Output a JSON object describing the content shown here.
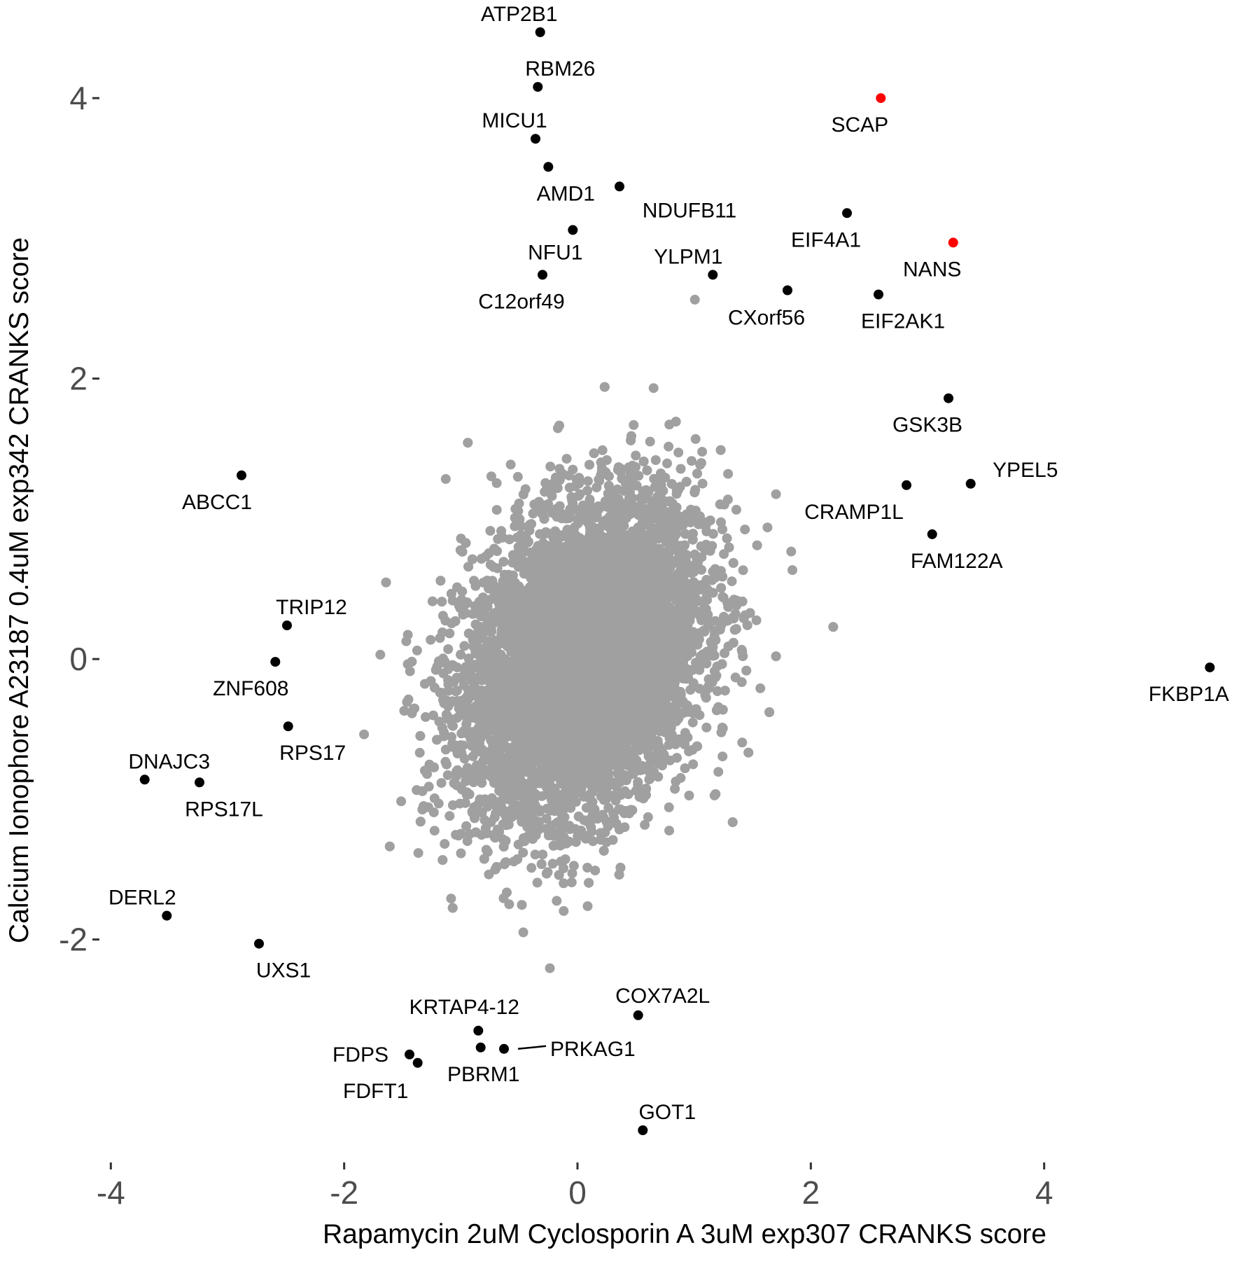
{
  "chart_data": {
    "type": "scatter",
    "title": "",
    "xlabel": "Rapamycin 2uM Cyclosporin A 3uM exp307 CRANKS score",
    "ylabel": "Calcium Ionophore A23187 0.4uM exp342 CRANKS score",
    "xlim": [
      -4.05,
      5.55
    ],
    "ylim": [
      -3.55,
      4.55
    ],
    "x_ticks": [
      -4,
      -2,
      0,
      2,
      4
    ],
    "y_ticks": [
      -2,
      0,
      2,
      4
    ],
    "x_tick_labels": [
      "-4",
      "-2",
      "0",
      "2",
      "4"
    ],
    "y_tick_labels": [
      "-2",
      "0",
      "2",
      "4"
    ],
    "grid": false,
    "legend": "none",
    "colors": {
      "background": "#ffffff",
      "cloud": "#a0a0a0",
      "highlight": "#000000",
      "special": "#ff0000",
      "tick_text": "#4d4d4d"
    },
    "background_cloud": {
      "description_counts": "approx. bivariate normal cloud of non-highlighted genes",
      "n": 9000,
      "x_mean": 0.05,
      "y_mean": 0.0,
      "x_sd": 0.5,
      "y_sd": 0.55,
      "correlation": 0.3,
      "color": "#a0a0a0"
    },
    "highlighted_points": [
      {
        "label": "ATP2B1",
        "x": -0.32,
        "y": 4.47,
        "color": "#000000"
      },
      {
        "label": "RBM26",
        "x": -0.34,
        "y": 4.08,
        "color": "#000000"
      },
      {
        "label": "MICU1",
        "x": -0.36,
        "y": 3.71,
        "color": "#000000"
      },
      {
        "label": "AMD1",
        "x": -0.25,
        "y": 3.51,
        "color": "#000000"
      },
      {
        "label": "NDUFB11",
        "x": 0.36,
        "y": 3.37,
        "color": "#000000"
      },
      {
        "label": "NFU1",
        "x": -0.04,
        "y": 3.06,
        "color": "#000000"
      },
      {
        "label": "C12orf49",
        "x": -0.3,
        "y": 2.74,
        "color": "#000000"
      },
      {
        "label": "YLPM1",
        "x": 1.16,
        "y": 2.74,
        "color": "#000000"
      },
      {
        "label": "CXorf56",
        "x": 1.8,
        "y": 2.63,
        "color": "#000000"
      },
      {
        "label": "SCAP",
        "x": 2.6,
        "y": 4.0,
        "color": "#ff0000"
      },
      {
        "label": "EIF4A1",
        "x": 2.31,
        "y": 3.18,
        "color": "#000000"
      },
      {
        "label": "NANS",
        "x": 3.22,
        "y": 2.97,
        "color": "#ff0000"
      },
      {
        "label": "EIF2AK1",
        "x": 2.58,
        "y": 2.6,
        "color": "#000000"
      },
      {
        "label": "GSK3B",
        "x": 3.18,
        "y": 1.86,
        "color": "#000000"
      },
      {
        "label": "YPEL5",
        "x": 3.37,
        "y": 1.25,
        "color": "#000000"
      },
      {
        "label": "CRAMP1L",
        "x": 2.82,
        "y": 1.24,
        "color": "#000000"
      },
      {
        "label": "FAM122A",
        "x": 3.04,
        "y": 0.89,
        "color": "#000000"
      },
      {
        "label": "FKBP1A",
        "x": 5.42,
        "y": -0.06,
        "color": "#000000"
      },
      {
        "label": "ABCC1",
        "x": -2.88,
        "y": 1.31,
        "color": "#000000"
      },
      {
        "label": "TRIP12",
        "x": -2.49,
        "y": 0.24,
        "color": "#000000"
      },
      {
        "label": "ZNF608",
        "x": -2.59,
        "y": -0.02,
        "color": "#000000"
      },
      {
        "label": "RPS17",
        "x": -2.48,
        "y": -0.48,
        "color": "#000000"
      },
      {
        "label": "DNAJC3",
        "x": -3.71,
        "y": -0.86,
        "color": "#000000"
      },
      {
        "label": "RPS17L",
        "x": -3.24,
        "y": -0.88,
        "color": "#000000"
      },
      {
        "label": "DERL2",
        "x": -3.52,
        "y": -1.83,
        "color": "#000000"
      },
      {
        "label": "UXS1",
        "x": -2.73,
        "y": -2.03,
        "color": "#000000"
      },
      {
        "label": "KRTAP4-12",
        "x": -0.85,
        "y": -2.65,
        "color": "#000000"
      },
      {
        "label": "COX7A2L",
        "x": 0.52,
        "y": -2.54,
        "color": "#000000"
      },
      {
        "label": "FDPS",
        "x": -1.44,
        "y": -2.82,
        "color": "#000000"
      },
      {
        "label": "FDFT1",
        "x": -1.37,
        "y": -2.88,
        "color": "#000000"
      },
      {
        "label": "PBRM1",
        "x": -0.83,
        "y": -2.77,
        "color": "#000000"
      },
      {
        "label": "PRKAG1",
        "x": -0.63,
        "y": -2.78,
        "color": "#000000"
      },
      {
        "label": "GOT1",
        "x": 0.56,
        "y": -3.36,
        "color": "#000000"
      }
    ]
  }
}
